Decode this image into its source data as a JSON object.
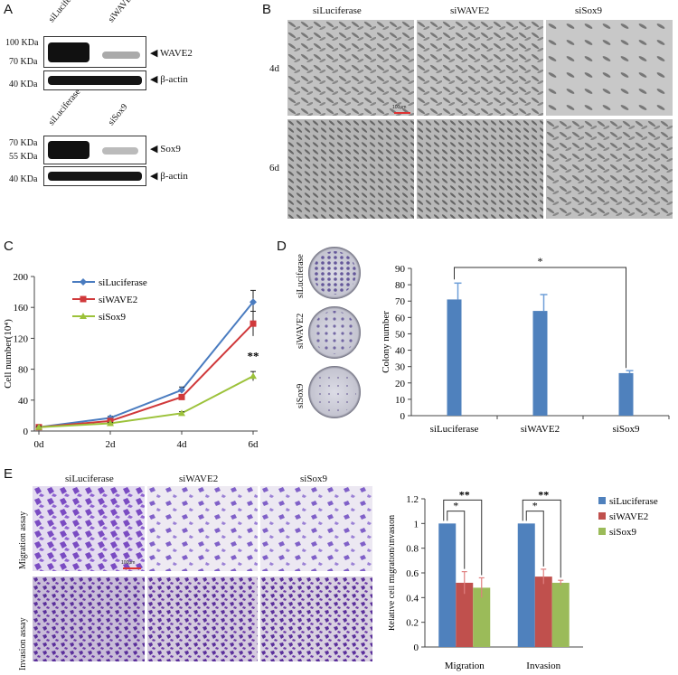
{
  "panels": {
    "A": "A",
    "B": "B",
    "C": "C",
    "D": "D",
    "E": "E"
  },
  "panelA": {
    "blot1": {
      "lanes": [
        "siLuciferase",
        "siWAVE2"
      ],
      "markers": [
        "100 KDa",
        "70 KDa",
        "40 KDa"
      ],
      "targets": [
        "WAVE2",
        "β-actin"
      ]
    },
    "blot2": {
      "lanes": [
        "siLuciferase",
        "siSox9"
      ],
      "markers": [
        "70 KDa",
        "55 KDa",
        "40 KDa"
      ],
      "targets": [
        "Sox9",
        "β-actin"
      ]
    }
  },
  "panelB": {
    "columns": [
      "siLuciferase",
      "siWAVE2",
      "siSox9"
    ],
    "rows": [
      "4d",
      "6d"
    ],
    "scale": "100μm"
  },
  "panelC": {
    "chart_data": {
      "type": "line",
      "x": [
        "0d",
        "2d",
        "4d",
        "6d"
      ],
      "ylabel": "Cell number(10⁴)",
      "ylim": [
        0,
        200
      ],
      "yticks": [
        0,
        40,
        80,
        120,
        160,
        200
      ],
      "series": [
        {
          "name": "siLuciferase",
          "color": "#4a7cc0",
          "marker": "diamond",
          "values": [
            5,
            17,
            53,
            167
          ],
          "err": [
            1,
            2,
            4,
            15
          ]
        },
        {
          "name": "siWAVE2",
          "color": "#d0393b",
          "marker": "square",
          "values": [
            5,
            13,
            44,
            139
          ],
          "err": [
            1,
            2,
            3,
            16
          ]
        },
        {
          "name": "siSox9",
          "color": "#9cc23a",
          "marker": "triangle",
          "values": [
            5,
            10,
            23,
            71
          ],
          "err": [
            1,
            1,
            2,
            6
          ]
        }
      ],
      "annotations": [
        {
          "text": "*",
          "x": "4d"
        },
        {
          "text": "**",
          "x": "6d"
        }
      ]
    }
  },
  "panelD": {
    "dish_labels": [
      "siLuciferase",
      "siWAVE2",
      "siSox9"
    ],
    "chart_data": {
      "type": "bar",
      "categories": [
        "siLuciferase",
        "siWAVE2",
        "siSox9"
      ],
      "values": [
        71,
        64,
        26
      ],
      "err": [
        10,
        10,
        1.5
      ],
      "ylabel": "Colony  number",
      "ylim": [
        0,
        90
      ],
      "yticks": [
        0,
        10,
        20,
        30,
        40,
        50,
        60,
        70,
        80,
        90
      ],
      "color": "#4f81bd",
      "annotations": [
        {
          "text": "*",
          "between": [
            "siLuciferase",
            "siSox9"
          ]
        }
      ]
    }
  },
  "panelE": {
    "columns": [
      "siLuciferase",
      "siWAVE2",
      "siSox9"
    ],
    "rows": [
      "Migration  assay",
      "Invasion   assay"
    ],
    "scale": "100μm",
    "chart_data": {
      "type": "bar",
      "categories": [
        "Migration",
        "Invasion"
      ],
      "ylabel": "Relative  cell  migration/invasion",
      "ylim": [
        0,
        1.2
      ],
      "yticks": [
        "0",
        "0.2",
        "0.4",
        "0.6",
        "0.8",
        "1",
        "1.2"
      ],
      "series": [
        {
          "name": "siLuciferase",
          "color": "#4f81bd",
          "values": [
            1.0,
            1.0
          ],
          "err": [
            0,
            0
          ]
        },
        {
          "name": "siWAVE2",
          "color": "#c0504d",
          "values": [
            0.52,
            0.57
          ],
          "err": [
            0.09,
            0.06
          ]
        },
        {
          "name": "siSox9",
          "color": "#9bbb59",
          "values": [
            0.48,
            0.52
          ],
          "err": [
            0.08,
            0.02
          ]
        }
      ],
      "annotations": [
        "*",
        "**",
        "*",
        "**"
      ]
    }
  }
}
